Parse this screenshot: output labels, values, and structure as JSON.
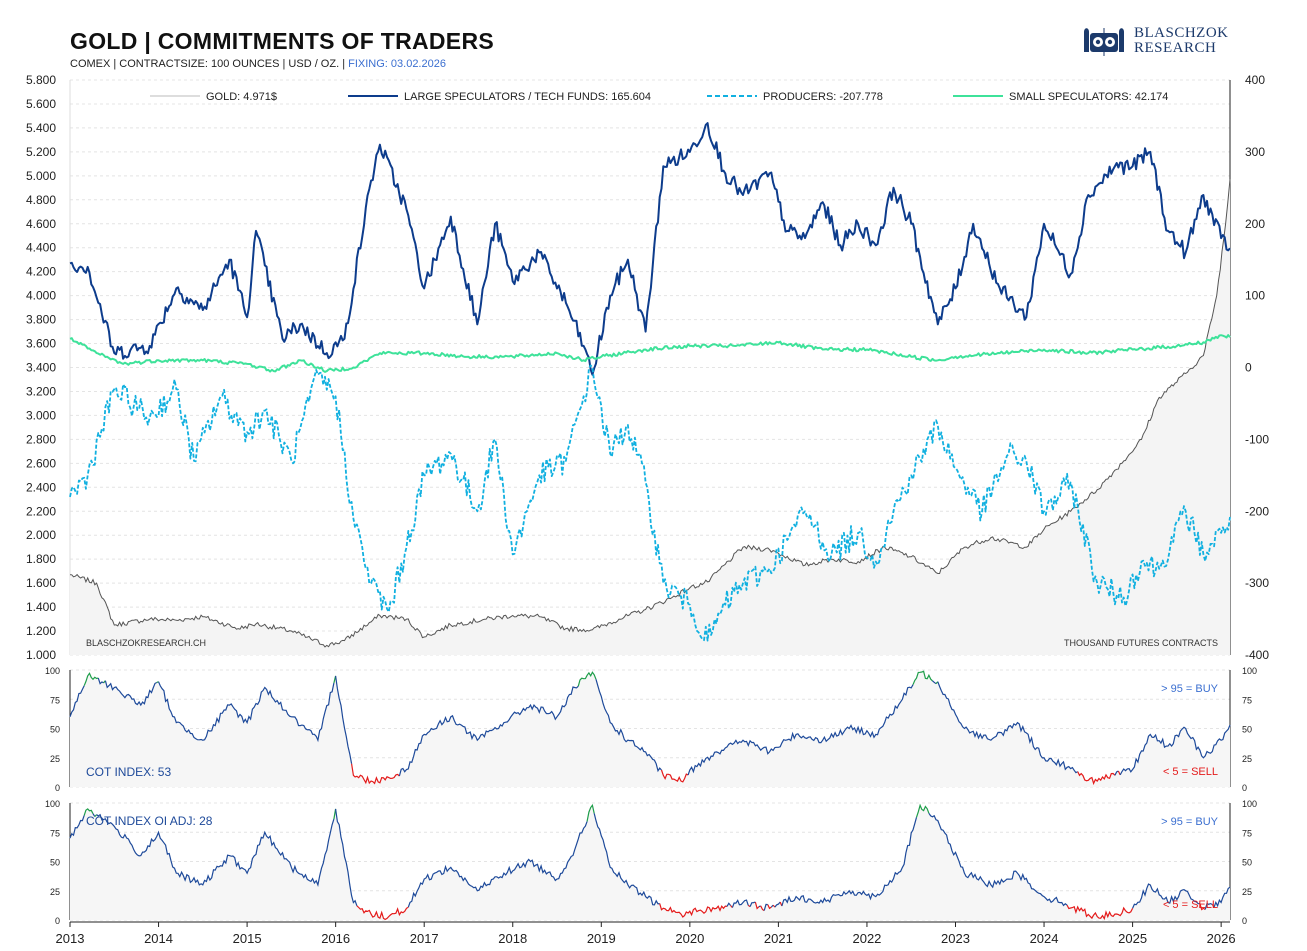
{
  "header": {
    "title": "GOLD | COMMITMENTS OF TRADERS",
    "subtitle_main": "COMEX | CONTRACTSIZE: 100 OUNCES | USD / OZ. | ",
    "subtitle_fixing": "FIXING: 03.02.2026",
    "logo_line1": "BLASCHZOK",
    "logo_line2": "RESEARCH",
    "logo_icon": "owls-logo-icon"
  },
  "colors": {
    "gold": "#555555",
    "large_spec": "#0d3c8c",
    "producers": "#11b0e0",
    "small_spec": "#3ee29a",
    "buy": "#1e9e4a",
    "sell": "#e41b1b",
    "grid": "#e4e4e4",
    "index_line": "#1e4a9a",
    "annotation_blue": "#3b6fd0"
  },
  "chart_data": [
    {
      "type": "line",
      "panel": "main",
      "x_range": [
        2013.0,
        2026.1
      ],
      "left_axis": {
        "label": "",
        "ylim": [
          1000,
          5800
        ],
        "ticks": [
          "5.800",
          "5.600",
          "5.400",
          "5.200",
          "5.000",
          "4.800",
          "4.600",
          "4.400",
          "4.200",
          "4.000",
          "3.800",
          "3.600",
          "3.400",
          "3.200",
          "3.000",
          "2.800",
          "2.600",
          "2.400",
          "2.200",
          "2.000",
          "1.800",
          "1.600",
          "1.400",
          "1.200",
          "1.000"
        ]
      },
      "right_axis": {
        "label": "THOUSAND  FUTURES CONTRACTS",
        "ylim": [
          -400,
          400
        ],
        "ticks": [
          "400",
          "300",
          "200",
          "100",
          "0",
          "-100",
          "-200",
          "-300",
          "-400"
        ]
      },
      "legend": [
        {
          "label": "GOLD: 4.971$",
          "style": "gold"
        },
        {
          "label": "LARGE SPECULATORS / TECH FUNDS: 165.604",
          "style": "large_spec"
        },
        {
          "label": "PRODUCERS: -207.778",
          "style": "producers"
        },
        {
          "label": "SMALL SPECULATORS: 42.174",
          "style": "small_spec"
        }
      ],
      "source_label": "BLASCHZOKRESEARCH.CH",
      "series": [
        {
          "name": "GOLD: 4.971$",
          "axis": "left",
          "x": [
            2013.0,
            2013.3,
            2013.5,
            2013.9,
            2014.2,
            2014.5,
            2014.9,
            2015.1,
            2015.5,
            2015.9,
            2016.1,
            2016.5,
            2016.8,
            2017.0,
            2017.3,
            2017.7,
            2018.0,
            2018.3,
            2018.6,
            2018.9,
            2019.2,
            2019.5,
            2019.8,
            2020.0,
            2020.2,
            2020.6,
            2020.9,
            2021.0,
            2021.3,
            2021.6,
            2021.9,
            2022.2,
            2022.5,
            2022.8,
            2023.1,
            2023.4,
            2023.8,
            2024.0,
            2024.3,
            2024.6,
            2024.9,
            2025.1,
            2025.3,
            2025.6,
            2025.8,
            2025.95,
            2026.05,
            2026.1
          ],
          "y": [
            1670,
            1600,
            1250,
            1300,
            1290,
            1320,
            1220,
            1260,
            1200,
            1080,
            1120,
            1330,
            1300,
            1150,
            1250,
            1300,
            1330,
            1320,
            1220,
            1210,
            1300,
            1380,
            1480,
            1560,
            1610,
            1900,
            1880,
            1850,
            1750,
            1800,
            1780,
            1900,
            1820,
            1680,
            1900,
            1980,
            1900,
            2050,
            2200,
            2380,
            2620,
            2800,
            3150,
            3350,
            3500,
            4000,
            4600,
            4971
          ]
        },
        {
          "name": "LARGE SPECULATORS / TECH FUNDS: 165.604",
          "axis": "right",
          "x": [
            2013.0,
            2013.2,
            2013.5,
            2013.9,
            2014.2,
            2014.5,
            2014.8,
            2015.0,
            2015.1,
            2015.4,
            2015.6,
            2015.9,
            2016.1,
            2016.4,
            2016.5,
            2016.8,
            2017.0,
            2017.3,
            2017.6,
            2017.8,
            2018.0,
            2018.3,
            2018.6,
            2018.8,
            2018.9,
            2019.1,
            2019.3,
            2019.5,
            2019.7,
            2020.0,
            2020.2,
            2020.4,
            2020.6,
            2020.9,
            2021.1,
            2021.3,
            2021.5,
            2021.7,
            2021.9,
            2022.1,
            2022.3,
            2022.5,
            2022.8,
            2023.0,
            2023.2,
            2023.5,
            2023.8,
            2024.0,
            2024.3,
            2024.5,
            2024.8,
            2025.0,
            2025.2,
            2025.4,
            2025.6,
            2025.8,
            2026.0,
            2026.1
          ],
          "y": [
            145,
            140,
            20,
            30,
            110,
            80,
            150,
            70,
            190,
            40,
            60,
            20,
            40,
            260,
            310,
            220,
            110,
            210,
            60,
            200,
            120,
            160,
            90,
            30,
            -10,
            100,
            150,
            50,
            280,
            300,
            340,
            270,
            240,
            270,
            190,
            180,
            230,
            170,
            200,
            170,
            250,
            200,
            60,
            110,
            200,
            110,
            70,
            200,
            130,
            240,
            280,
            280,
            300,
            190,
            160,
            240,
            180,
            166
          ]
        },
        {
          "name": "PRODUCERS: -207.778",
          "axis": "right",
          "x": [
            2013.0,
            2013.2,
            2013.5,
            2013.9,
            2014.2,
            2014.4,
            2014.7,
            2015.0,
            2015.2,
            2015.5,
            2015.8,
            2016.0,
            2016.2,
            2016.4,
            2016.6,
            2016.8,
            2017.0,
            2017.3,
            2017.6,
            2017.8,
            2018.0,
            2018.3,
            2018.6,
            2018.8,
            2018.9,
            2019.1,
            2019.3,
            2019.5,
            2019.7,
            2020.0,
            2020.2,
            2020.4,
            2020.6,
            2020.9,
            2021.1,
            2021.3,
            2021.6,
            2021.9,
            2022.1,
            2022.3,
            2022.5,
            2022.8,
            2023.0,
            2023.3,
            2023.6,
            2023.8,
            2024.0,
            2024.3,
            2024.6,
            2024.9,
            2025.1,
            2025.3,
            2025.6,
            2025.8,
            2026.0,
            2026.1
          ],
          "y": [
            -180,
            -150,
            -30,
            -70,
            -30,
            -130,
            -40,
            -90,
            -60,
            -130,
            -10,
            -40,
            -210,
            -300,
            -340,
            -250,
            -150,
            -120,
            -200,
            -100,
            -260,
            -150,
            -130,
            -40,
            0,
            -120,
            -80,
            -160,
            -300,
            -330,
            -380,
            -330,
            -300,
            -280,
            -240,
            -200,
            -260,
            -230,
            -270,
            -200,
            -150,
            -80,
            -140,
            -200,
            -120,
            -130,
            -200,
            -160,
            -300,
            -320,
            -270,
            -280,
            -200,
            -260,
            -230,
            -208
          ]
        },
        {
          "name": "SMALL SPECULATORS: 42.174",
          "axis": "right",
          "x": [
            2013.0,
            2013.3,
            2013.6,
            2014.0,
            2014.5,
            2015.0,
            2015.3,
            2015.6,
            2015.9,
            2016.2,
            2016.5,
            2017.0,
            2017.5,
            2018.0,
            2018.5,
            2018.8,
            2019.0,
            2019.5,
            2020.0,
            2020.5,
            2021.0,
            2021.5,
            2022.0,
            2022.5,
            2022.8,
            2023.0,
            2023.5,
            2024.0,
            2024.5,
            2025.0,
            2025.5,
            2025.8,
            2026.0,
            2026.1
          ],
          "y": [
            40,
            20,
            5,
            10,
            10,
            5,
            -5,
            10,
            -5,
            0,
            20,
            20,
            15,
            15,
            20,
            10,
            15,
            25,
            30,
            30,
            35,
            25,
            25,
            15,
            10,
            15,
            20,
            25,
            20,
            25,
            30,
            35,
            45,
            42
          ]
        }
      ]
    },
    {
      "type": "line",
      "panel": "cot_index",
      "label": "COT INDEX: 53",
      "ylim": [
        0,
        100
      ],
      "ticks": [
        "100",
        "75",
        "50",
        "25",
        "0"
      ],
      "buy_label": "> 95 = BUY",
      "sell_label": "< 5 = SELL",
      "series": [
        {
          "name": "COT INDEX: 53",
          "x": [
            2013.0,
            2013.2,
            2013.5,
            2013.8,
            2014.0,
            2014.2,
            2014.5,
            2014.8,
            2015.0,
            2015.2,
            2015.5,
            2015.8,
            2016.0,
            2016.2,
            2016.4,
            2016.6,
            2016.8,
            2017.0,
            2017.3,
            2017.6,
            2017.9,
            2018.2,
            2018.5,
            2018.7,
            2018.9,
            2019.1,
            2019.3,
            2019.5,
            2019.7,
            2019.9,
            2020.1,
            2020.3,
            2020.6,
            2020.9,
            2021.2,
            2021.5,
            2021.8,
            2022.1,
            2022.4,
            2022.6,
            2022.8,
            2023.1,
            2023.4,
            2023.7,
            2024.0,
            2024.2,
            2024.4,
            2024.6,
            2024.8,
            2025.0,
            2025.2,
            2025.4,
            2025.6,
            2025.8,
            2026.0,
            2026.1
          ],
          "y": [
            60,
            95,
            85,
            70,
            90,
            55,
            40,
            70,
            55,
            85,
            60,
            40,
            95,
            10,
            5,
            8,
            15,
            45,
            60,
            40,
            55,
            70,
            60,
            85,
            98,
            55,
            40,
            30,
            10,
            5,
            20,
            30,
            40,
            30,
            45,
            40,
            50,
            45,
            75,
            98,
            90,
            50,
            40,
            55,
            25,
            20,
            10,
            5,
            10,
            15,
            45,
            35,
            50,
            25,
            40,
            53
          ]
        }
      ]
    },
    {
      "type": "line",
      "panel": "cot_index_oi_adj",
      "label": "COT INDEX OI ADJ: 28",
      "ylim": [
        0,
        100
      ],
      "ticks": [
        "100",
        "75",
        "50",
        "25",
        "0"
      ],
      "buy_label": "> 95 = BUY",
      "sell_label": "< 5 = SELL",
      "series": [
        {
          "name": "COT INDEX OI ADJ: 28",
          "x": [
            2013.0,
            2013.2,
            2013.5,
            2013.8,
            2014.0,
            2014.2,
            2014.5,
            2014.8,
            2015.0,
            2015.2,
            2015.5,
            2015.8,
            2016.0,
            2016.2,
            2016.4,
            2016.6,
            2016.8,
            2017.0,
            2017.3,
            2017.6,
            2017.9,
            2018.2,
            2018.5,
            2018.7,
            2018.9,
            2019.1,
            2019.3,
            2019.5,
            2019.7,
            2019.9,
            2020.1,
            2020.3,
            2020.6,
            2020.9,
            2021.2,
            2021.5,
            2021.8,
            2022.1,
            2022.4,
            2022.6,
            2022.8,
            2023.1,
            2023.4,
            2023.7,
            2024.0,
            2024.2,
            2024.4,
            2024.6,
            2024.8,
            2025.0,
            2025.2,
            2025.4,
            2025.6,
            2025.8,
            2026.0,
            2026.1
          ],
          "y": [
            70,
            95,
            80,
            55,
            75,
            40,
            30,
            55,
            40,
            75,
            45,
            30,
            95,
            15,
            5,
            3,
            10,
            35,
            45,
            25,
            40,
            50,
            35,
            60,
            98,
            45,
            30,
            20,
            10,
            5,
            8,
            10,
            15,
            10,
            20,
            15,
            25,
            20,
            45,
            98,
            85,
            40,
            30,
            40,
            20,
            15,
            8,
            3,
            5,
            10,
            30,
            15,
            25,
            10,
            15,
            28
          ]
        }
      ]
    }
  ],
  "x_axis": {
    "ticks": [
      "2013",
      "2014",
      "2015",
      "2016",
      "2017",
      "2018",
      "2019",
      "2020",
      "2021",
      "2022",
      "2023",
      "2024",
      "2025",
      "2026"
    ],
    "range": [
      2013.0,
      2026.1
    ]
  }
}
